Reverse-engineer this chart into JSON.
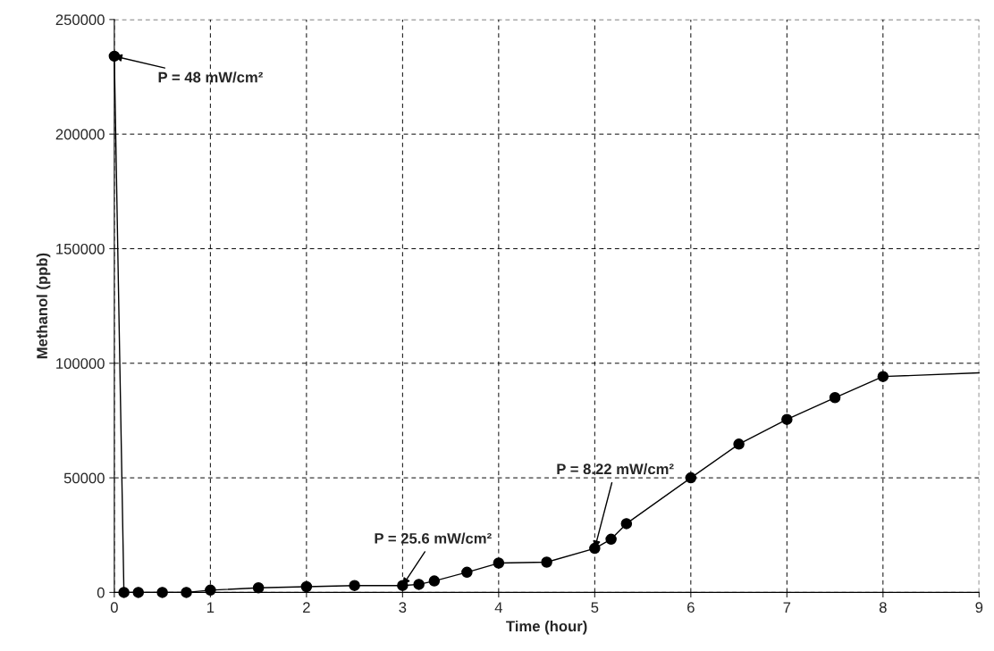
{
  "chart_data": {
    "type": "line",
    "xlabel": "Time (hour)",
    "ylabel": "Methanol (ppb)",
    "xlim": [
      0,
      9
    ],
    "ylim": [
      0,
      250000
    ],
    "xticks": [
      0,
      1,
      2,
      3,
      4,
      5,
      6,
      7,
      8,
      9
    ],
    "yticks": [
      0,
      50000,
      100000,
      150000,
      200000,
      250000
    ],
    "grid": true,
    "legend": false,
    "series": [
      {
        "color": "#000000",
        "marker": "circle",
        "x": [
          0,
          0.1,
          0.25,
          0.5,
          0.75,
          1,
          1.5,
          2,
          2.5,
          3,
          3.17,
          3.33,
          3.67,
          4,
          4.5,
          5,
          5.17,
          5.33,
          6,
          6.5,
          7,
          7.5,
          8
        ],
        "values": [
          234000,
          0,
          0,
          0,
          0,
          1000,
          2000,
          2500,
          3000,
          3000,
          3500,
          5000,
          8800,
          12800,
          13200,
          19200,
          23200,
          30000,
          50000,
          64700,
          75500,
          85000,
          94200
        ]
      },
      {
        "color": "#000000",
        "marker": "none",
        "x": [
          8,
          9
        ],
        "values": [
          94200,
          95800
        ]
      }
    ],
    "annotations": [
      {
        "text": "P = 48 mW/cm²",
        "x": 0,
        "y": 234000
      },
      {
        "text": "P = 25.6 mW/cm²",
        "x": 3,
        "y": 3000
      },
      {
        "text": "P = 8.22 mW/cm²",
        "x": 5,
        "y": 19200
      }
    ]
  }
}
